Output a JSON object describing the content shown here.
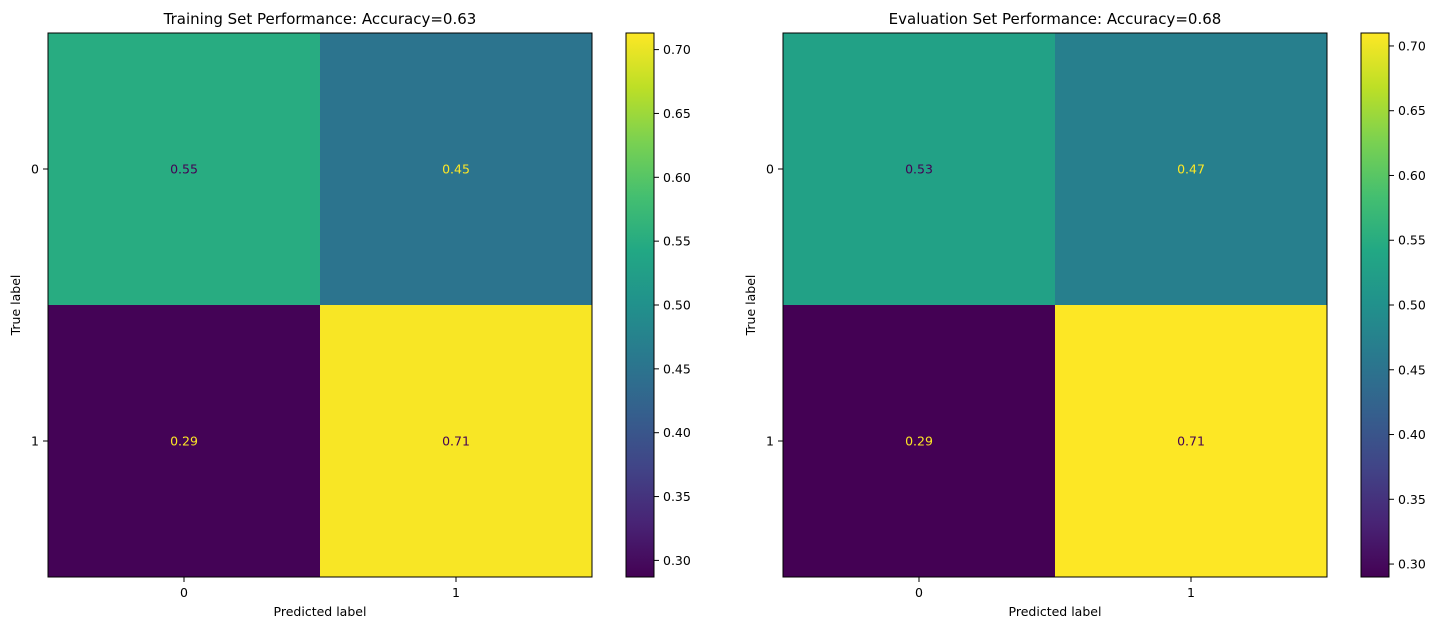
{
  "chart_data": [
    {
      "type": "heatmap",
      "title": "Training Set Performance: Accuracy=0.63",
      "xlabel": "Predicted label",
      "ylabel": "True label",
      "x_categories": [
        "0",
        "1"
      ],
      "y_categories": [
        "0",
        "1"
      ],
      "values": [
        [
          0.55,
          0.45
        ],
        [
          0.29,
          0.71
        ]
      ],
      "value_labels": [
        [
          "0.55",
          "0.45"
        ],
        [
          "0.29",
          "0.71"
        ]
      ],
      "colormap": "viridis",
      "color_range": [
        0.287,
        0.713
      ],
      "colorbar_ticks": [
        "0.30",
        "0.35",
        "0.40",
        "0.45",
        "0.50",
        "0.55",
        "0.60",
        "0.65",
        "0.70"
      ],
      "grid": false
    },
    {
      "type": "heatmap",
      "title": "Evaluation Set Performance: Accuracy=0.68",
      "xlabel": "Predicted label",
      "ylabel": "True label",
      "x_categories": [
        "0",
        "1"
      ],
      "y_categories": [
        "0",
        "1"
      ],
      "values": [
        [
          0.53,
          0.47
        ],
        [
          0.29,
          0.71
        ]
      ],
      "value_labels": [
        [
          "0.53",
          "0.47"
        ],
        [
          "0.29",
          "0.71"
        ]
      ],
      "colormap": "viridis",
      "color_range": [
        0.29,
        0.71
      ],
      "colorbar_ticks": [
        "0.30",
        "0.35",
        "0.40",
        "0.45",
        "0.50",
        "0.55",
        "0.60",
        "0.65",
        "0.70"
      ],
      "grid": false
    }
  ]
}
